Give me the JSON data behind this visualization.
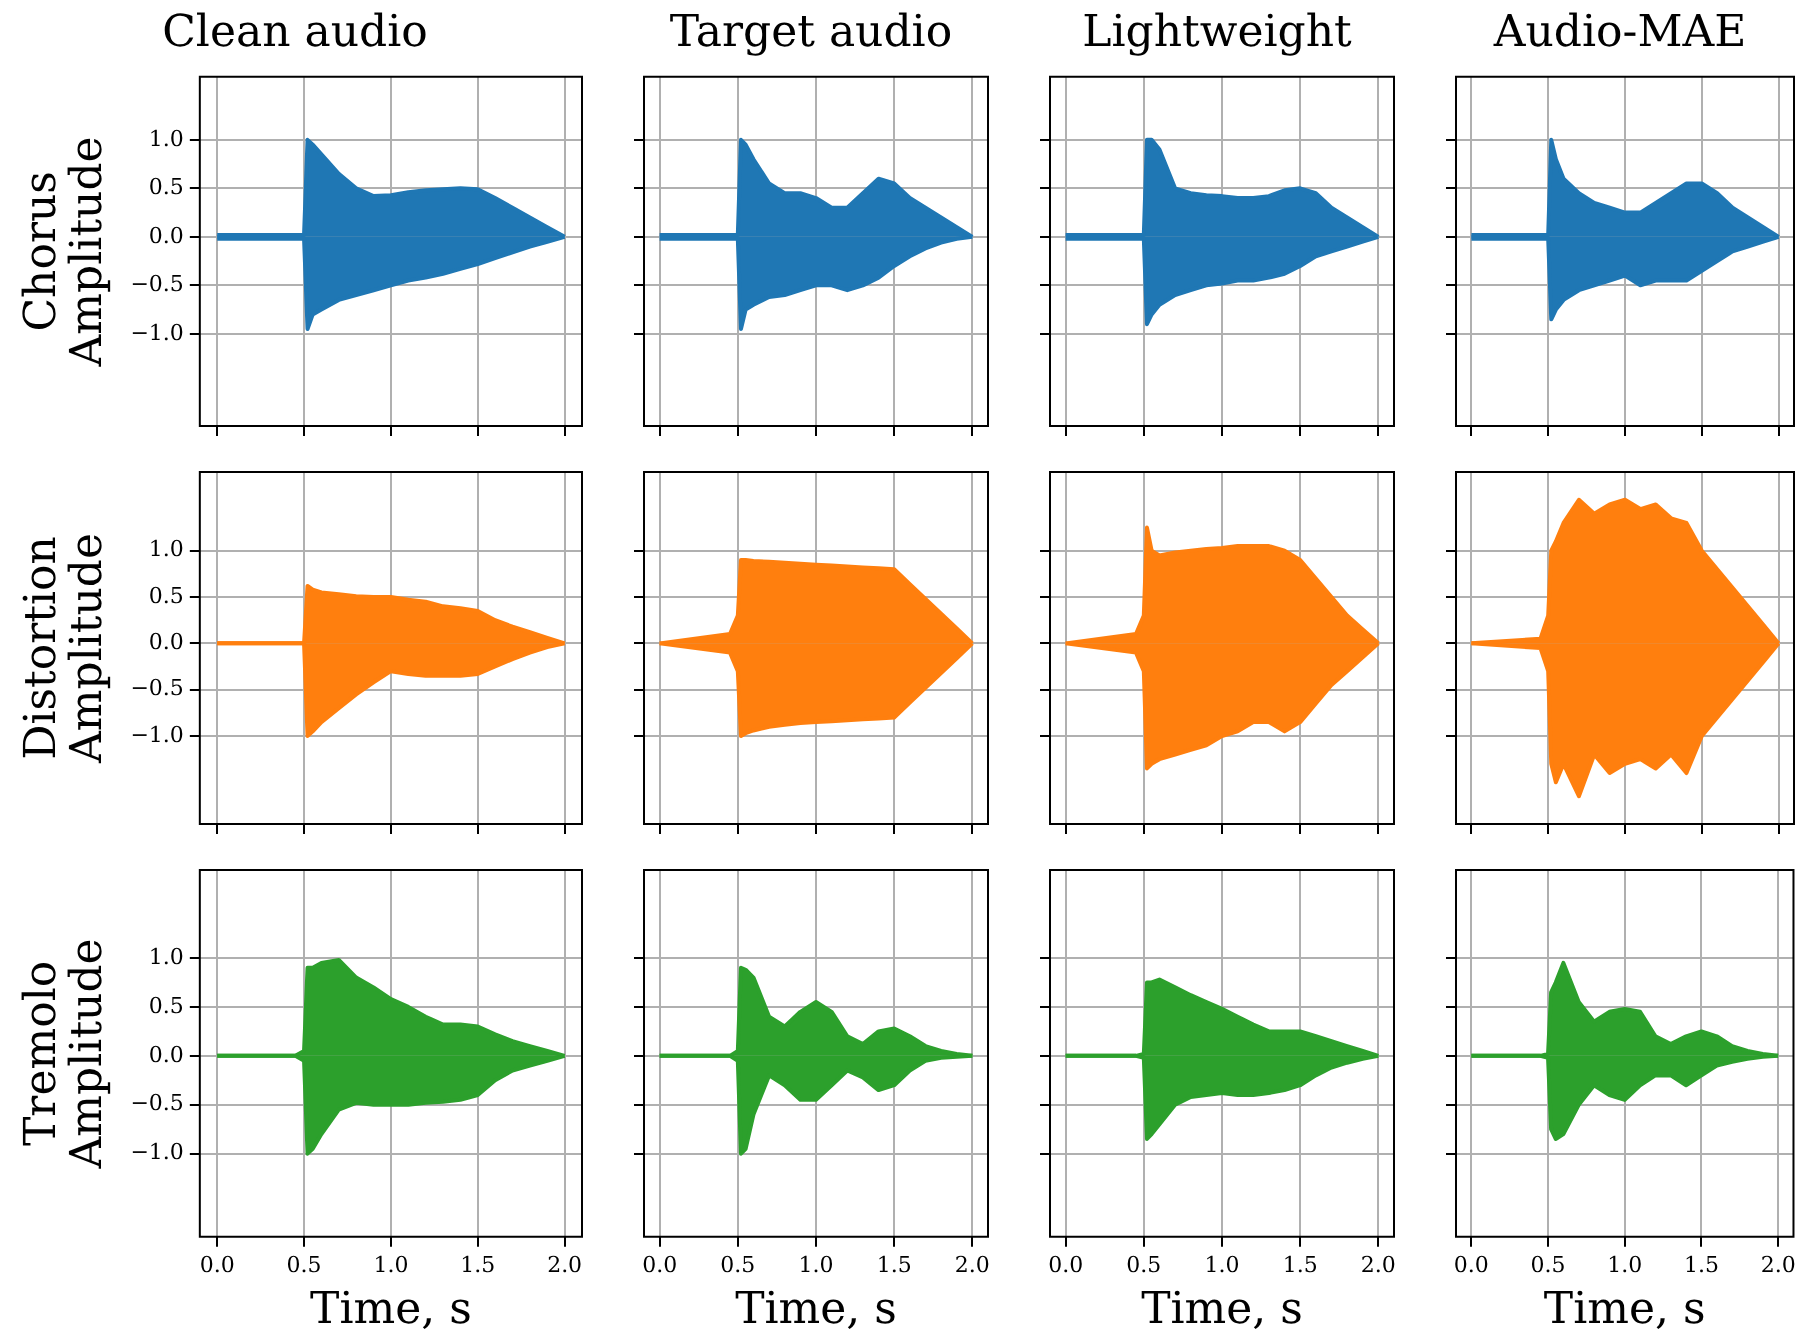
{
  "chart_data": [
    {
      "type": "area",
      "title": "Clean audio",
      "ylabel": "Chorus\nAmplitude",
      "tick_labels": "y",
      "grid": true,
      "marker": "none",
      "x": [
        0,
        0.45,
        0.5,
        0.52,
        0.55,
        0.6,
        0.7,
        0.8,
        0.9,
        1.0,
        1.1,
        1.2,
        1.3,
        1.4,
        1.5,
        1.6,
        1.7,
        1.8,
        1.9,
        2.0
      ],
      "xlim": [
        -0.1,
        2.1
      ],
      "xticks": [
        {
          "value": 0,
          "label": null
        },
        {
          "value": 0.5,
          "label": null
        },
        {
          "value": 1,
          "label": null
        },
        {
          "value": 1.5,
          "label": null
        },
        {
          "value": 2,
          "label": null
        }
      ],
      "ylim": [
        -1.95,
        1.65
      ],
      "yticks": [
        {
          "value": -1,
          "label": "−1.0"
        },
        {
          "value": -0.5,
          "label": "−0.5"
        },
        {
          "value": 0,
          "label": "0.0"
        },
        {
          "value": 0.5,
          "label": "0.5"
        },
        {
          "value": 1,
          "label": "1.0"
        }
      ],
      "series": [
        {
          "color": "#1f77b4",
          "values": [
            0.02,
            0.02,
            0.02,
            1.0,
            0.95,
            0.85,
            0.65,
            0.5,
            0.42,
            0.43,
            0.46,
            0.48,
            0.49,
            0.5,
            0.49,
            0.4,
            0.3,
            0.2,
            0.1,
            0.0
          ]
        },
        {
          "color": "#1f77b4",
          "values": [
            -0.02,
            -0.02,
            -0.02,
            -0.95,
            -0.8,
            -0.75,
            -0.65,
            -0.6,
            -0.55,
            -0.5,
            -0.45,
            -0.42,
            -0.38,
            -0.33,
            -0.28,
            -0.22,
            -0.16,
            -0.1,
            -0.05,
            0.0
          ]
        }
      ]
    },
    {
      "type": "area",
      "title": "Target audio",
      "tick_labels": false,
      "grid": true,
      "marker": "none",
      "x": [
        0,
        0.45,
        0.5,
        0.52,
        0.55,
        0.6,
        0.7,
        0.8,
        0.9,
        1.0,
        1.1,
        1.2,
        1.3,
        1.4,
        1.5,
        1.6,
        1.7,
        1.8,
        1.9,
        2.0
      ],
      "xlim": [
        -0.1,
        2.1
      ],
      "xticks": [
        {
          "value": 0,
          "label": null
        },
        {
          "value": 0.5,
          "label": null
        },
        {
          "value": 1,
          "label": null
        },
        {
          "value": 1.5,
          "label": null
        },
        {
          "value": 2,
          "label": null
        }
      ],
      "ylim": [
        -1.95,
        1.65
      ],
      "yticks": [
        {
          "value": -1,
          "label": null
        },
        {
          "value": -0.5,
          "label": null
        },
        {
          "value": 0,
          "label": null
        },
        {
          "value": 0.5,
          "label": null
        },
        {
          "value": 1,
          "label": null
        }
      ],
      "series": [
        {
          "color": "#1f77b4",
          "values": [
            0.02,
            0.02,
            0.02,
            1.0,
            0.95,
            0.8,
            0.55,
            0.45,
            0.45,
            0.4,
            0.3,
            0.3,
            0.45,
            0.6,
            0.55,
            0.4,
            0.3,
            0.2,
            0.1,
            0.0
          ]
        },
        {
          "color": "#1f77b4",
          "values": [
            -0.02,
            -0.02,
            -0.02,
            -0.95,
            -0.75,
            -0.7,
            -0.62,
            -0.6,
            -0.55,
            -0.5,
            -0.5,
            -0.55,
            -0.5,
            -0.42,
            -0.3,
            -0.2,
            -0.12,
            -0.06,
            -0.02,
            0.0
          ]
        }
      ]
    },
    {
      "type": "area",
      "title": "Lightweight",
      "tick_labels": false,
      "grid": true,
      "marker": "none",
      "x": [
        0,
        0.45,
        0.5,
        0.52,
        0.55,
        0.6,
        0.7,
        0.8,
        0.9,
        1.0,
        1.1,
        1.2,
        1.3,
        1.4,
        1.5,
        1.6,
        1.7,
        1.8,
        1.9,
        2.0
      ],
      "xlim": [
        -0.1,
        2.1
      ],
      "xticks": [
        {
          "value": 0,
          "label": null
        },
        {
          "value": 0.5,
          "label": null
        },
        {
          "value": 1,
          "label": null
        },
        {
          "value": 1.5,
          "label": null
        },
        {
          "value": 2,
          "label": null
        }
      ],
      "ylim": [
        -1.95,
        1.65
      ],
      "yticks": [
        {
          "value": -1,
          "label": null
        },
        {
          "value": -0.5,
          "label": null
        },
        {
          "value": 0,
          "label": null
        },
        {
          "value": 0.5,
          "label": null
        },
        {
          "value": 1,
          "label": null
        }
      ],
      "series": [
        {
          "color": "#1f77b4",
          "values": [
            0.02,
            0.02,
            0.02,
            1.0,
            1.0,
            0.9,
            0.5,
            0.45,
            0.43,
            0.42,
            0.4,
            0.4,
            0.42,
            0.48,
            0.5,
            0.45,
            0.3,
            0.2,
            0.1,
            0.0
          ]
        },
        {
          "color": "#1f77b4",
          "values": [
            -0.02,
            -0.02,
            -0.02,
            -0.9,
            -0.8,
            -0.7,
            -0.6,
            -0.55,
            -0.5,
            -0.48,
            -0.45,
            -0.45,
            -0.42,
            -0.38,
            -0.3,
            -0.2,
            -0.15,
            -0.1,
            -0.05,
            0.0
          ]
        }
      ]
    },
    {
      "type": "area",
      "title": "Audio-MAE",
      "tick_labels": false,
      "grid": true,
      "marker": "none",
      "x": [
        0,
        0.45,
        0.5,
        0.52,
        0.55,
        0.6,
        0.7,
        0.8,
        0.9,
        1.0,
        1.1,
        1.2,
        1.3,
        1.4,
        1.5,
        1.6,
        1.7,
        1.8,
        1.9,
        2.0
      ],
      "xlim": [
        -0.1,
        2.1
      ],
      "xticks": [
        {
          "value": 0,
          "label": null
        },
        {
          "value": 0.5,
          "label": null
        },
        {
          "value": 1,
          "label": null
        },
        {
          "value": 1.5,
          "label": null
        },
        {
          "value": 2,
          "label": null
        }
      ],
      "ylim": [
        -1.95,
        1.65
      ],
      "yticks": [
        {
          "value": -1,
          "label": null
        },
        {
          "value": -0.5,
          "label": null
        },
        {
          "value": 0,
          "label": null
        },
        {
          "value": 0.5,
          "label": null
        },
        {
          "value": 1,
          "label": null
        }
      ],
      "series": [
        {
          "color": "#1f77b4",
          "values": [
            0.02,
            0.02,
            0.02,
            1.0,
            0.8,
            0.6,
            0.45,
            0.35,
            0.3,
            0.25,
            0.25,
            0.35,
            0.45,
            0.55,
            0.55,
            0.45,
            0.3,
            0.2,
            0.1,
            0.0
          ]
        },
        {
          "color": "#1f77b4",
          "values": [
            -0.02,
            -0.02,
            -0.02,
            -0.85,
            -0.75,
            -0.65,
            -0.55,
            -0.5,
            -0.45,
            -0.4,
            -0.5,
            -0.45,
            -0.45,
            -0.45,
            -0.35,
            -0.25,
            -0.15,
            -0.1,
            -0.05,
            0.0
          ]
        }
      ]
    },
    {
      "type": "area",
      "ylabel": "Distortion\nAmplitude",
      "tick_labels": "y",
      "grid": true,
      "marker": "none",
      "x": [
        0,
        0.45,
        0.5,
        0.52,
        0.55,
        0.6,
        0.7,
        0.8,
        0.9,
        1.0,
        1.1,
        1.2,
        1.3,
        1.4,
        1.5,
        1.6,
        1.7,
        1.8,
        1.9,
        2.0
      ],
      "xlim": [
        -0.1,
        2.1
      ],
      "xticks": [
        {
          "value": 0,
          "label": null
        },
        {
          "value": 0.5,
          "label": null
        },
        {
          "value": 1,
          "label": null
        },
        {
          "value": 1.5,
          "label": null
        },
        {
          "value": 2,
          "label": null
        }
      ],
      "ylim": [
        -1.95,
        1.85
      ],
      "yticks": [
        {
          "value": -1,
          "label": "−1.0"
        },
        {
          "value": -0.5,
          "label": "−0.5"
        },
        {
          "value": 0,
          "label": "0.0"
        },
        {
          "value": 0.5,
          "label": "0.5"
        },
        {
          "value": 1,
          "label": "1.0"
        }
      ],
      "series": [
        {
          "color": "#ff7f0e",
          "values": [
            0.0,
            0.0,
            0.0,
            0.62,
            0.58,
            0.55,
            0.53,
            0.51,
            0.5,
            0.5,
            0.47,
            0.45,
            0.4,
            0.38,
            0.35,
            0.25,
            0.18,
            0.12,
            0.06,
            0.0
          ]
        },
        {
          "color": "#ff7f0e",
          "values": [
            0.0,
            0.0,
            0.0,
            -1.0,
            -0.95,
            -0.85,
            -0.7,
            -0.55,
            -0.42,
            -0.3,
            -0.33,
            -0.35,
            -0.35,
            -0.35,
            -0.33,
            -0.25,
            -0.17,
            -0.1,
            -0.04,
            0.0
          ]
        }
      ]
    },
    {
      "type": "area",
      "tick_labels": false,
      "grid": true,
      "marker": "none",
      "x": [
        0,
        0.45,
        0.5,
        0.52,
        0.55,
        0.6,
        0.7,
        0.8,
        0.9,
        1.0,
        1.1,
        1.2,
        1.3,
        1.4,
        1.5,
        1.6,
        1.7,
        1.8,
        1.9,
        2.0
      ],
      "xlim": [
        -0.1,
        2.1
      ],
      "xticks": [
        {
          "value": 0,
          "label": null
        },
        {
          "value": 0.5,
          "label": null
        },
        {
          "value": 1,
          "label": null
        },
        {
          "value": 1.5,
          "label": null
        },
        {
          "value": 2,
          "label": null
        }
      ],
      "ylim": [
        -1.95,
        1.85
      ],
      "yticks": [
        {
          "value": -1,
          "label": null
        },
        {
          "value": -0.5,
          "label": null
        },
        {
          "value": 0,
          "label": null
        },
        {
          "value": 0.5,
          "label": null
        },
        {
          "value": 1,
          "label": null
        }
      ],
      "series": [
        {
          "color": "#ff7f0e",
          "values": [
            0.0,
            0.1,
            0.3,
            0.9,
            0.9,
            0.89,
            0.88,
            0.87,
            0.86,
            0.85,
            0.84,
            0.83,
            0.82,
            0.81,
            0.8,
            0.64,
            0.48,
            0.32,
            0.16,
            0.0
          ]
        },
        {
          "color": "#ff7f0e",
          "values": [
            0.0,
            -0.1,
            -0.3,
            -1.0,
            -0.97,
            -0.94,
            -0.9,
            -0.88,
            -0.86,
            -0.85,
            -0.84,
            -0.83,
            -0.82,
            -0.81,
            -0.8,
            -0.64,
            -0.48,
            -0.32,
            -0.16,
            0.0
          ]
        }
      ]
    },
    {
      "type": "area",
      "tick_labels": false,
      "grid": true,
      "marker": "none",
      "x": [
        0,
        0.45,
        0.5,
        0.52,
        0.55,
        0.6,
        0.7,
        0.8,
        0.9,
        1.0,
        1.1,
        1.2,
        1.3,
        1.4,
        1.5,
        1.6,
        1.7,
        1.8,
        1.9,
        2.0
      ],
      "xlim": [
        -0.1,
        2.1
      ],
      "xticks": [
        {
          "value": 0,
          "label": null
        },
        {
          "value": 0.5,
          "label": null
        },
        {
          "value": 1,
          "label": null
        },
        {
          "value": 1.5,
          "label": null
        },
        {
          "value": 2,
          "label": null
        }
      ],
      "ylim": [
        -1.95,
        1.85
      ],
      "yticks": [
        {
          "value": -1,
          "label": null
        },
        {
          "value": -0.5,
          "label": null
        },
        {
          "value": 0,
          "label": null
        },
        {
          "value": 0.5,
          "label": null
        },
        {
          "value": 1,
          "label": null
        }
      ],
      "series": [
        {
          "color": "#ff7f0e",
          "values": [
            0.0,
            0.1,
            0.3,
            1.25,
            1.0,
            0.95,
            0.98,
            1.0,
            1.02,
            1.03,
            1.05,
            1.05,
            1.05,
            1.0,
            0.9,
            0.7,
            0.5,
            0.3,
            0.15,
            0.0
          ]
        },
        {
          "color": "#ff7f0e",
          "values": [
            0.0,
            -0.1,
            -0.3,
            -1.35,
            -1.3,
            -1.25,
            -1.2,
            -1.15,
            -1.1,
            -1.0,
            -0.95,
            -0.85,
            -0.85,
            -0.95,
            -0.85,
            -0.65,
            -0.45,
            -0.3,
            -0.15,
            0.0
          ]
        }
      ]
    },
    {
      "type": "area",
      "tick_labels": false,
      "grid": true,
      "marker": "none",
      "x": [
        0,
        0.45,
        0.5,
        0.52,
        0.55,
        0.6,
        0.7,
        0.8,
        0.9,
        1.0,
        1.1,
        1.2,
        1.3,
        1.4,
        1.5,
        1.6,
        1.7,
        1.8,
        1.9,
        2.0
      ],
      "xlim": [
        -0.1,
        2.1
      ],
      "xticks": [
        {
          "value": 0,
          "label": null
        },
        {
          "value": 0.5,
          "label": null
        },
        {
          "value": 1,
          "label": null
        },
        {
          "value": 1.5,
          "label": null
        },
        {
          "value": 2,
          "label": null
        }
      ],
      "ylim": [
        -1.95,
        1.85
      ],
      "yticks": [
        {
          "value": -1,
          "label": null
        },
        {
          "value": -0.5,
          "label": null
        },
        {
          "value": 0,
          "label": null
        },
        {
          "value": 0.5,
          "label": null
        },
        {
          "value": 1,
          "label": null
        }
      ],
      "series": [
        {
          "color": "#ff7f0e",
          "values": [
            0.0,
            0.05,
            0.3,
            1.0,
            1.1,
            1.3,
            1.55,
            1.4,
            1.5,
            1.55,
            1.45,
            1.5,
            1.35,
            1.3,
            1.0,
            0.8,
            0.6,
            0.4,
            0.2,
            0.0
          ]
        },
        {
          "color": "#ff7f0e",
          "values": [
            0.0,
            -0.05,
            -0.3,
            -1.3,
            -1.5,
            -1.3,
            -1.65,
            -1.2,
            -1.4,
            -1.3,
            -1.25,
            -1.35,
            -1.2,
            -1.4,
            -1.0,
            -0.8,
            -0.6,
            -0.4,
            -0.2,
            0.0
          ]
        }
      ]
    },
    {
      "type": "area",
      "ylabel": "Tremolo\nAmplitude",
      "xlabel": "Time, s",
      "grid": true,
      "marker": "none",
      "x": [
        0,
        0.45,
        0.5,
        0.52,
        0.55,
        0.6,
        0.7,
        0.8,
        0.9,
        1.0,
        1.1,
        1.2,
        1.3,
        1.4,
        1.5,
        1.6,
        1.7,
        1.8,
        1.9,
        2.0
      ],
      "xlim": [
        -0.1,
        2.1
      ],
      "xticks": [
        {
          "value": 0,
          "label": "0.0"
        },
        {
          "value": 0.5,
          "label": "0.5"
        },
        {
          "value": 1,
          "label": "1.0"
        },
        {
          "value": 1.5,
          "label": "1.5"
        },
        {
          "value": 2,
          "label": "2.0"
        }
      ],
      "ylim": [
        -1.85,
        1.9
      ],
      "yticks": [
        {
          "value": -1,
          "label": "−1.0"
        },
        {
          "value": -0.5,
          "label": "−0.5"
        },
        {
          "value": 0,
          "label": "0.0"
        },
        {
          "value": 0.5,
          "label": "0.5"
        },
        {
          "value": 1,
          "label": "1.0"
        }
      ],
      "series": [
        {
          "color": "#2ca02c",
          "values": [
            0.0,
            0.0,
            0.05,
            0.9,
            0.9,
            0.95,
            0.98,
            0.8,
            0.7,
            0.58,
            0.5,
            0.4,
            0.32,
            0.32,
            0.3,
            0.22,
            0.15,
            0.1,
            0.05,
            0.0
          ]
        },
        {
          "color": "#2ca02c",
          "values": [
            0.0,
            0.0,
            -0.05,
            -1.0,
            -0.95,
            -0.8,
            -0.55,
            -0.48,
            -0.5,
            -0.5,
            -0.5,
            -0.48,
            -0.47,
            -0.45,
            -0.4,
            -0.25,
            -0.15,
            -0.1,
            -0.05,
            0.0
          ]
        }
      ]
    },
    {
      "type": "area",
      "xlabel": "Time, s",
      "tick_labels": "x",
      "grid": true,
      "marker": "none",
      "x": [
        0,
        0.45,
        0.5,
        0.52,
        0.55,
        0.6,
        0.7,
        0.8,
        0.9,
        1.0,
        1.1,
        1.2,
        1.3,
        1.4,
        1.5,
        1.6,
        1.7,
        1.8,
        1.9,
        2.0
      ],
      "xlim": [
        -0.1,
        2.1
      ],
      "xticks": [
        {
          "value": 0,
          "label": "0.0"
        },
        {
          "value": 0.5,
          "label": "0.5"
        },
        {
          "value": 1,
          "label": "1.0"
        },
        {
          "value": 1.5,
          "label": "1.5"
        },
        {
          "value": 2,
          "label": "2.0"
        }
      ],
      "ylim": [
        -1.85,
        1.9
      ],
      "yticks": [
        {
          "value": -1,
          "label": null
        },
        {
          "value": -0.5,
          "label": null
        },
        {
          "value": 0,
          "label": null
        },
        {
          "value": 0.5,
          "label": null
        },
        {
          "value": 1,
          "label": null
        }
      ],
      "series": [
        {
          "color": "#2ca02c",
          "values": [
            0.0,
            0.0,
            0.05,
            0.9,
            0.88,
            0.8,
            0.4,
            0.3,
            0.45,
            0.55,
            0.45,
            0.2,
            0.12,
            0.25,
            0.28,
            0.2,
            0.1,
            0.05,
            0.02,
            0.0
          ]
        },
        {
          "color": "#2ca02c",
          "values": [
            0.0,
            0.0,
            -0.05,
            -1.0,
            -0.95,
            -0.6,
            -0.2,
            -0.3,
            -0.45,
            -0.45,
            -0.3,
            -0.15,
            -0.22,
            -0.35,
            -0.3,
            -0.15,
            -0.05,
            -0.02,
            -0.01,
            0.0
          ]
        }
      ]
    },
    {
      "type": "area",
      "xlabel": "Time, s",
      "tick_labels": "x",
      "grid": true,
      "marker": "none",
      "x": [
        0,
        0.45,
        0.5,
        0.52,
        0.55,
        0.6,
        0.7,
        0.8,
        0.9,
        1.0,
        1.1,
        1.2,
        1.3,
        1.4,
        1.5,
        1.6,
        1.7,
        1.8,
        1.9,
        2.0
      ],
      "xlim": [
        -0.1,
        2.1
      ],
      "xticks": [
        {
          "value": 0,
          "label": "0.0"
        },
        {
          "value": 0.5,
          "label": "0.5"
        },
        {
          "value": 1,
          "label": "1.0"
        },
        {
          "value": 1.5,
          "label": "1.5"
        },
        {
          "value": 2,
          "label": "2.0"
        }
      ],
      "ylim": [
        -1.85,
        1.9
      ],
      "yticks": [
        {
          "value": -1,
          "label": null
        },
        {
          "value": -0.5,
          "label": null
        },
        {
          "value": 0,
          "label": null
        },
        {
          "value": 0.5,
          "label": null
        },
        {
          "value": 1,
          "label": null
        }
      ],
      "series": [
        {
          "color": "#2ca02c",
          "values": [
            0.0,
            0.0,
            0.02,
            0.75,
            0.75,
            0.78,
            0.7,
            0.62,
            0.55,
            0.48,
            0.4,
            0.32,
            0.25,
            0.25,
            0.25,
            0.2,
            0.15,
            0.1,
            0.05,
            0.0
          ]
        },
        {
          "color": "#2ca02c",
          "values": [
            0.0,
            0.0,
            -0.02,
            -0.85,
            -0.8,
            -0.7,
            -0.5,
            -0.42,
            -0.4,
            -0.38,
            -0.4,
            -0.4,
            -0.38,
            -0.35,
            -0.3,
            -0.2,
            -0.12,
            -0.07,
            -0.03,
            0.0
          ]
        }
      ]
    },
    {
      "type": "area",
      "xlabel": "Time, s",
      "tick_labels": "x",
      "grid": true,
      "marker": "none",
      "x": [
        0,
        0.45,
        0.5,
        0.52,
        0.55,
        0.6,
        0.7,
        0.8,
        0.9,
        1.0,
        1.1,
        1.2,
        1.3,
        1.4,
        1.5,
        1.6,
        1.7,
        1.8,
        1.9,
        2.0
      ],
      "xlim": [
        -0.1,
        2.1
      ],
      "xticks": [
        {
          "value": 0,
          "label": "0.0"
        },
        {
          "value": 0.5,
          "label": "0.5"
        },
        {
          "value": 1,
          "label": "1.0"
        },
        {
          "value": 1.5,
          "label": "1.5"
        },
        {
          "value": 2,
          "label": "2.0"
        }
      ],
      "ylim": [
        -1.85,
        1.9
      ],
      "yticks": [
        {
          "value": -1,
          "label": null
        },
        {
          "value": -0.5,
          "label": null
        },
        {
          "value": 0,
          "label": null
        },
        {
          "value": 0.5,
          "label": null
        },
        {
          "value": 1,
          "label": null
        }
      ],
      "series": [
        {
          "color": "#2ca02c",
          "values": [
            0.0,
            0.0,
            0.02,
            0.65,
            0.75,
            0.95,
            0.55,
            0.35,
            0.45,
            0.48,
            0.45,
            0.2,
            0.12,
            0.2,
            0.25,
            0.2,
            0.1,
            0.05,
            0.02,
            0.0
          ]
        },
        {
          "color": "#2ca02c",
          "values": [
            0.0,
            0.0,
            -0.02,
            -0.75,
            -0.85,
            -0.8,
            -0.5,
            -0.3,
            -0.4,
            -0.45,
            -0.3,
            -0.2,
            -0.2,
            -0.3,
            -0.2,
            -0.1,
            -0.06,
            -0.03,
            -0.01,
            0.0
          ]
        }
      ]
    }
  ]
}
